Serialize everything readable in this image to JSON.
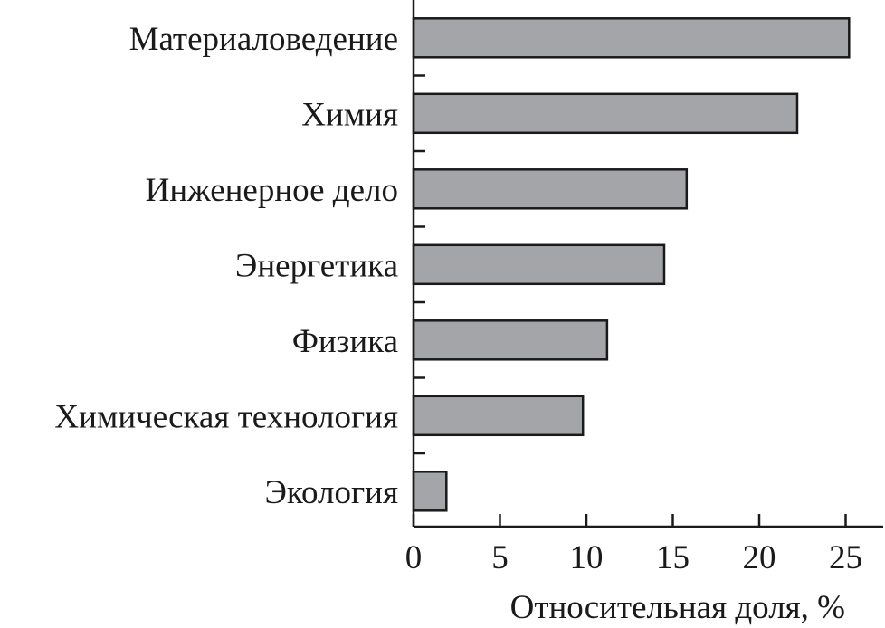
{
  "chart_data": {
    "type": "bar",
    "orientation": "horizontal",
    "categories": [
      "Материаловедение",
      "Химия",
      "Инженерное дело",
      "Энергетика",
      "Физика",
      "Химическая технология",
      "Экология"
    ],
    "values": [
      25.2,
      22.2,
      15.8,
      14.5,
      11.2,
      9.8,
      1.9
    ],
    "xlabel": "Относительная доля, %",
    "ylabel": "",
    "xlim": [
      0,
      28
    ],
    "xticks": [
      "0",
      "5",
      "10",
      "15",
      "20",
      "25"
    ],
    "grid": false,
    "bar_color": "#a4a5a9",
    "edge_color": "#1a1a1a"
  }
}
